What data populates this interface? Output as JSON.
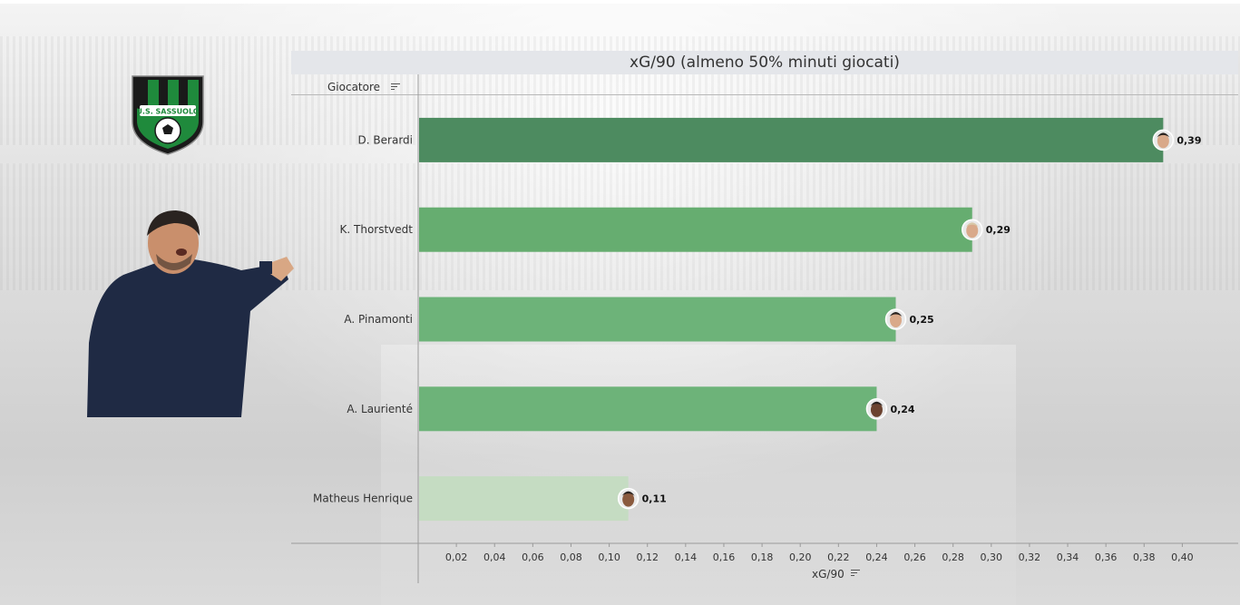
{
  "title": "xG/90 (almeno 50% minuti giocati)",
  "header": {
    "row_label": "Giocatore"
  },
  "logo": {
    "text": "U.S. SASSUOLO",
    "colors": {
      "green": "#1f8a3c",
      "black": "#1a1a1a"
    }
  },
  "colors": {
    "bar_dark": "#4d8b60",
    "bar_mid": "#66ad70",
    "bar_light": "#c5dcc2",
    "axis": "#9a9a9a",
    "title_band": "#e4e6ea"
  },
  "chart_data": {
    "type": "bar",
    "orientation": "horizontal",
    "title": "xG/90 (almeno 50% minuti giocati)",
    "ylabel": "Giocatore",
    "xlabel": "xG/90",
    "categories": [
      "D. Berardi",
      "K. Thorstvedt",
      "A. Pinamonti",
      "A. Laurienté",
      "Matheus Henrique"
    ],
    "values": [
      0.39,
      0.29,
      0.25,
      0.24,
      0.11
    ],
    "value_labels": [
      "0,39",
      "0,29",
      "0,25",
      "0,24",
      "0,11"
    ],
    "bar_colors": [
      "#4d8b60",
      "#66ad70",
      "#6db379",
      "#6db379",
      "#c5dcc2"
    ],
    "xlim": [
      0,
      0.415
    ],
    "xticks": [
      0.02,
      0.04,
      0.06,
      0.08,
      0.1,
      0.12,
      0.14,
      0.16,
      0.18,
      0.2,
      0.22,
      0.24,
      0.26,
      0.28,
      0.3,
      0.32,
      0.34,
      0.36,
      0.38,
      0.4
    ],
    "xtick_labels": [
      "0,02",
      "0,04",
      "0,06",
      "0,08",
      "0,10",
      "0,12",
      "0,14",
      "0,16",
      "0,18",
      "0,20",
      "0,22",
      "0,24",
      "0,26",
      "0,28",
      "0,30",
      "0,32",
      "0,34",
      "0,36",
      "0,38",
      "0,40"
    ],
    "grid": false,
    "legend": "none"
  }
}
